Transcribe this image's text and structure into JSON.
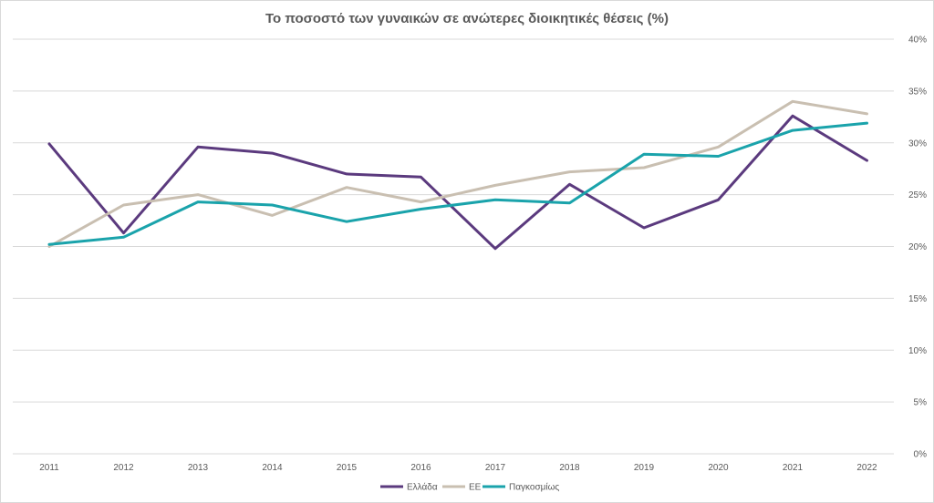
{
  "chart_data": {
    "type": "line",
    "title": "Το ποσοστό των γυναικών σε ανώτερες διοικητικές θέσεις (%)",
    "xlabel": "",
    "ylabel": "",
    "ylim": [
      0,
      40
    ],
    "y_unit": "%",
    "y_ticks": [
      "0%",
      "5%",
      "10%",
      "15%",
      "20%",
      "25%",
      "30%",
      "35%",
      "40%"
    ],
    "y_tick_values": [
      0,
      5,
      10,
      15,
      20,
      25,
      30,
      35,
      40
    ],
    "y_axis_side": "right",
    "grid": true,
    "legend_position": "bottom",
    "categories": [
      "2011",
      "2012",
      "2013",
      "2014",
      "2015",
      "2016",
      "2017",
      "2018",
      "2019",
      "2020",
      "2021",
      "2022"
    ],
    "series": [
      {
        "name": "Ελλάδα",
        "color": "#5b3a7e",
        "values": [
          29.9,
          21.3,
          29.6,
          29.0,
          27.0,
          26.7,
          19.8,
          26.0,
          21.8,
          24.5,
          32.6,
          28.3
        ]
      },
      {
        "name": "ΕΕ",
        "color": "#c9bfb1",
        "values": [
          20.0,
          24.0,
          25.0,
          23.0,
          25.7,
          24.3,
          25.9,
          27.2,
          27.6,
          29.6,
          34.0,
          32.8
        ]
      },
      {
        "name": "Παγκοσμίως",
        "color": "#1aa3ab",
        "values": [
          20.2,
          20.9,
          24.3,
          24.0,
          22.4,
          23.6,
          24.5,
          24.2,
          28.9,
          28.7,
          31.2,
          31.9
        ]
      }
    ]
  }
}
